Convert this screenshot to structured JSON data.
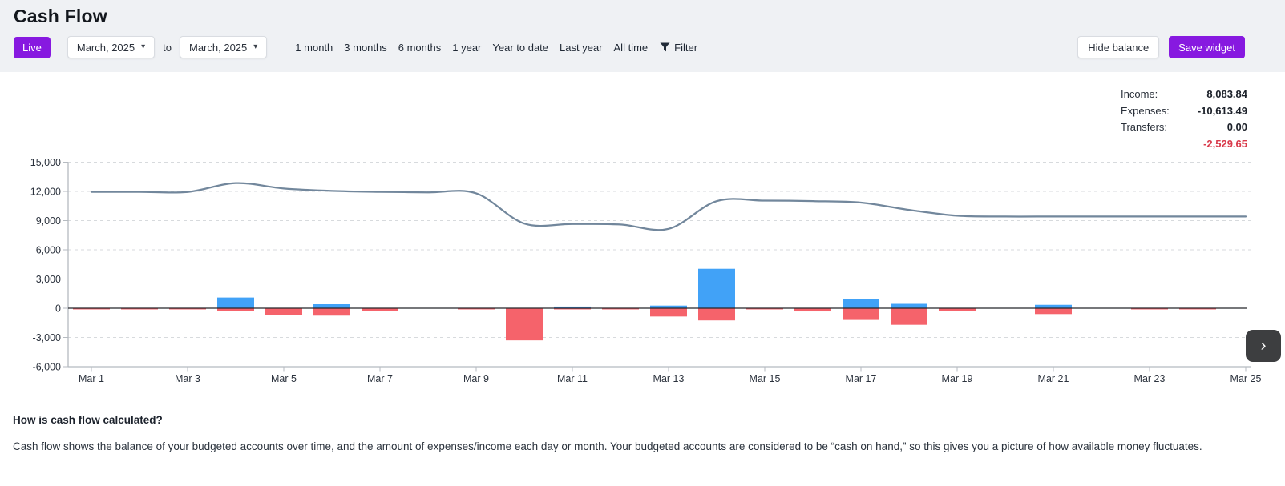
{
  "page": {
    "title": "Cash Flow"
  },
  "toolbar": {
    "live_label": "Live",
    "date_from": "March, 2025",
    "to_word": "to",
    "date_to": "March, 2025",
    "ranges": [
      "1 month",
      "3 months",
      "6 months",
      "1 year",
      "Year to date",
      "Last year",
      "All time"
    ],
    "filter_label": "Filter",
    "hide_balance_label": "Hide balance",
    "save_widget_label": "Save widget"
  },
  "summary": {
    "rows": [
      {
        "label": "Income:",
        "value": "8,083.84"
      },
      {
        "label": "Expenses:",
        "value": "-10,613.49"
      },
      {
        "label": "Transfers:",
        "value": "0.00"
      }
    ],
    "net": "-2,529.65"
  },
  "chart_data": {
    "type": "line+bar combo (daily cash flow with running balance)",
    "x": [
      "Mar 1",
      "Mar 2",
      "Mar 3",
      "Mar 4",
      "Mar 5",
      "Mar 6",
      "Mar 7",
      "Mar 8",
      "Mar 9",
      "Mar 10",
      "Mar 11",
      "Mar 12",
      "Mar 13",
      "Mar 14",
      "Mar 15",
      "Mar 16",
      "Mar 17",
      "Mar 18",
      "Mar 19",
      "Mar 20",
      "Mar 21",
      "Mar 22",
      "Mar 23",
      "Mar 24",
      "Mar 25"
    ],
    "x_tick_labels": [
      "Mar 1",
      "Mar 3",
      "Mar 5",
      "Mar 7",
      "Mar 9",
      "Mar 11",
      "Mar 13",
      "Mar 15",
      "Mar 17",
      "Mar 19",
      "Mar 21",
      "Mar 23",
      "Mar 25"
    ],
    "yticks": [
      15000,
      12000,
      9000,
      6000,
      3000,
      0,
      -3000,
      -6000
    ],
    "ytick_labels": [
      "15,000",
      "12,000",
      "9,000",
      "6,000",
      "3,000",
      "0",
      "-3,000",
      "-6,000"
    ],
    "ylim": [
      -6000,
      15000
    ],
    "grid": "horizontal dashed gridlines; solid dark zero line; no legend",
    "series": [
      {
        "name": "balance",
        "type": "line",
        "color": "#72879c",
        "values": [
          11950,
          11950,
          11940,
          12850,
          12300,
          12050,
          11950,
          11900,
          11800,
          8700,
          8650,
          8600,
          8150,
          11000,
          11050,
          11000,
          10850,
          10100,
          9500,
          9420,
          9420,
          9420,
          9420,
          9420,
          9420
        ]
      },
      {
        "name": "income",
        "type": "bar",
        "color": "#41a2f7",
        "values": [
          0,
          0,
          0,
          1100,
          0,
          410,
          0,
          0,
          0,
          0,
          170,
          0,
          270,
          4050,
          0,
          0,
          950,
          450,
          0,
          0,
          350,
          0,
          0,
          0,
          0
        ]
      },
      {
        "name": "expenses",
        "type": "bar",
        "color": "#f5636b",
        "values": [
          -50,
          -40,
          -90,
          -270,
          -680,
          -760,
          -250,
          0,
          -40,
          -3300,
          -60,
          -50,
          -850,
          -1250,
          -60,
          -330,
          -1200,
          -1700,
          -280,
          0,
          -600,
          0,
          -60,
          -40,
          0
        ]
      }
    ]
  },
  "nav": {
    "next_icon": "›"
  },
  "footer": {
    "heading": "How is cash flow calculated?",
    "body": "Cash flow shows the balance of your budgeted accounts over time, and the amount of expenses/income each day or month. Your budgeted accounts are considered to be “cash on hand,” so this gives you a picture of how available money fluctuates."
  },
  "colors": {
    "accent_purple": "#8719e0",
    "income_blue": "#41a2f7",
    "expense_red": "#f5636b",
    "balance_line": "#72879c",
    "negative_red": "#d93a4b",
    "header_bg": "#eff1f4"
  }
}
